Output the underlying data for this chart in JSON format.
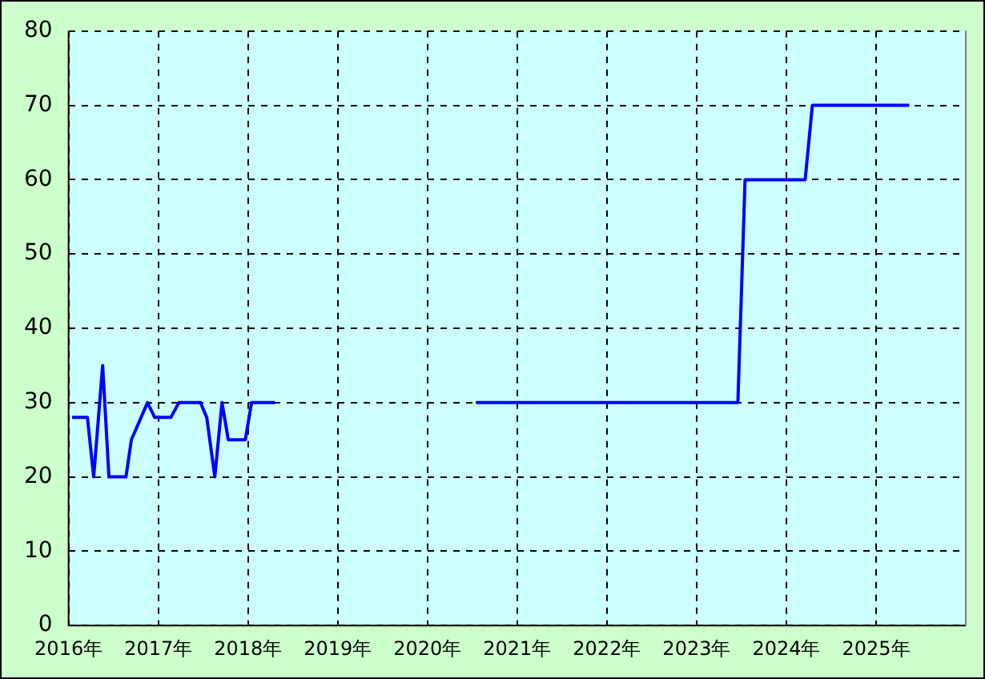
{
  "chart_data": {
    "type": "line",
    "x": [
      2016.04,
      2016.21,
      2016.28,
      2016.38,
      2016.45,
      2016.64,
      2016.7,
      2016.88,
      2016.96,
      2017.14,
      2017.23,
      2017.47,
      2017.54,
      2017.63,
      2017.71,
      2017.78,
      2017.97,
      2018.04,
      2018.3,
      2019.4,
      2020.54,
      2023.46,
      2023.54,
      2024.21,
      2024.29,
      2025.37
    ],
    "series": [
      {
        "color": "#0000ff",
        "values": [
          28,
          28,
          20,
          35,
          20,
          20,
          25,
          30,
          28,
          28,
          30,
          30,
          28,
          20,
          30,
          25,
          25,
          30,
          30,
          null,
          30,
          30,
          60,
          60,
          70,
          70
        ]
      }
    ],
    "xlim": [
      2016,
      2026
    ],
    "xticks": [
      {
        "value": 2016,
        "label": "2016年"
      },
      {
        "value": 2017,
        "label": "2017年"
      },
      {
        "value": 2018,
        "label": "2018年"
      },
      {
        "value": 2019,
        "label": "2019年"
      },
      {
        "value": 2020,
        "label": "2020年"
      },
      {
        "value": 2021,
        "label": "2021年"
      },
      {
        "value": 2022,
        "label": "2022年"
      },
      {
        "value": 2023,
        "label": "2023年"
      },
      {
        "value": 2024,
        "label": "2024年"
      },
      {
        "value": 2025,
        "label": "2025年"
      },
      {
        "value": 2026,
        "label": null
      }
    ],
    "ylim": [
      0,
      80
    ],
    "yticks": [
      0,
      10,
      20,
      30,
      40,
      50,
      60,
      70,
      80
    ],
    "grid": true,
    "legend": false,
    "marker": "none",
    "line_style": "solid"
  }
}
